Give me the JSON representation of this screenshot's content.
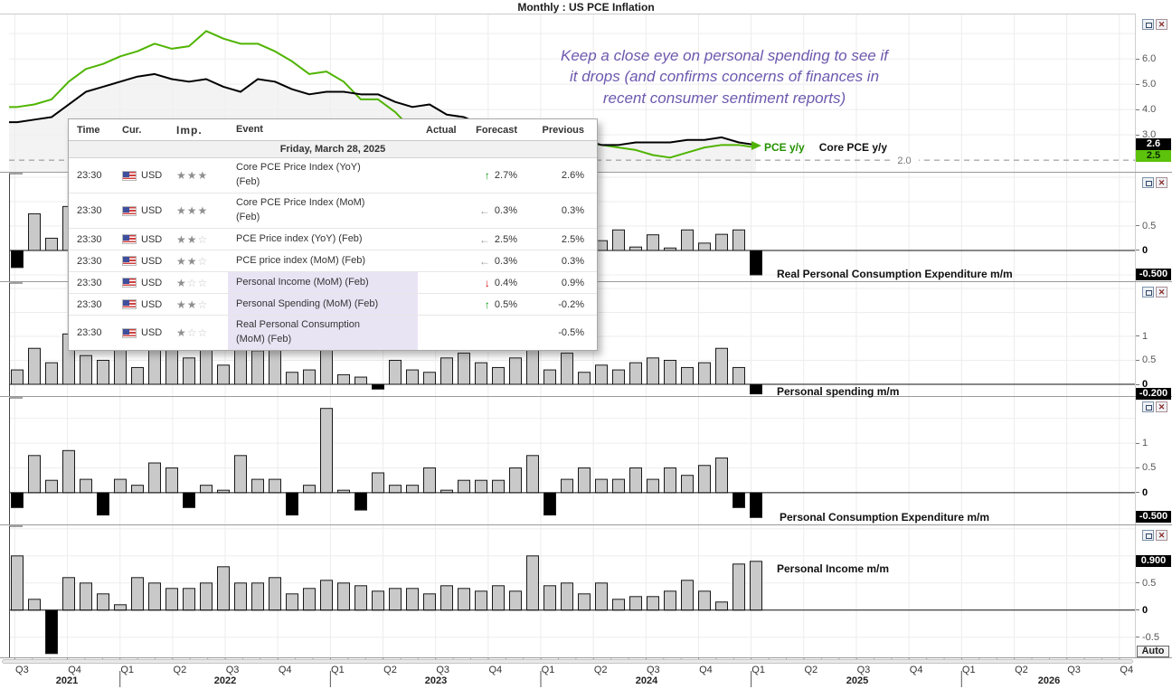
{
  "window": {
    "title": "Monthly : US PCE Inflation"
  },
  "annotation": {
    "lines": [
      "Keep a close eye on personal spending to see if",
      "it drops (and confirms concerns of finances in",
      "recent consumer sentiment reports)"
    ],
    "color": "#6d58ae"
  },
  "legend": {
    "items": [
      {
        "label": "PCE y/y",
        "color": "#249200"
      },
      {
        "label": "Core PCE y/y",
        "color": "#111111"
      }
    ]
  },
  "icons": {
    "minimize": "restore-box",
    "close": "✕",
    "up_arrow": "↑",
    "down_arrow": "↓",
    "flat_arrow": "←",
    "star_filled": "★",
    "star_empty": "☆"
  },
  "auto_button_label": "Auto",
  "calendar": {
    "header": [
      "Time",
      "Cur.",
      "Imp.",
      "Event",
      "Actual",
      "Forecast",
      "Previous"
    ],
    "date_label": "Friday, March 28, 2025",
    "rows": [
      {
        "time": "23:30",
        "currency": "USD",
        "importance": 3,
        "event": "Core PCE Price Index (YoY)\n(Feb)",
        "actual": "",
        "forecast": "2.7%",
        "forecast_dir": "up",
        "previous": "2.6%",
        "highlighted": false,
        "two_line": true
      },
      {
        "time": "23:30",
        "currency": "USD",
        "importance": 3,
        "event": "Core PCE Price Index (MoM)\n(Feb)",
        "actual": "",
        "forecast": "0.3%",
        "forecast_dir": "flat",
        "previous": "0.3%",
        "highlighted": false,
        "two_line": true
      },
      {
        "time": "23:30",
        "currency": "USD",
        "importance": 2,
        "event": "PCE Price index (YoY) (Feb)",
        "actual": "",
        "forecast": "2.5%",
        "forecast_dir": "flat",
        "previous": "2.5%",
        "highlighted": false,
        "two_line": false
      },
      {
        "time": "23:30",
        "currency": "USD",
        "importance": 2,
        "event": "PCE price index (MoM) (Feb)",
        "actual": "",
        "forecast": "0.3%",
        "forecast_dir": "flat",
        "previous": "0.3%",
        "highlighted": false,
        "two_line": false
      },
      {
        "time": "23:30",
        "currency": "USD",
        "importance": 1,
        "event": "Personal Income (MoM) (Feb)",
        "actual": "",
        "forecast": "0.4%",
        "forecast_dir": "down",
        "previous": "0.9%",
        "highlighted": true,
        "two_line": false
      },
      {
        "time": "23:30",
        "currency": "USD",
        "importance": 2,
        "event": "Personal Spending (MoM) (Feb)",
        "actual": "",
        "forecast": "0.5%",
        "forecast_dir": "up",
        "previous": "-0.2%",
        "highlighted": true,
        "two_line": false
      },
      {
        "time": "23:30",
        "currency": "USD",
        "importance": 1,
        "event": "Real Personal Consumption\n(MoM) (Feb)",
        "actual": "",
        "forecast": "",
        "forecast_dir": "none",
        "previous": "-0.5%",
        "highlighted": true,
        "two_line": true
      }
    ]
  },
  "time_axis": {
    "quarters": [
      "Q3",
      "Q4",
      "Q1",
      "Q2",
      "Q3",
      "Q4",
      "Q1",
      "Q2",
      "Q3",
      "Q4",
      "Q1",
      "Q2",
      "Q3",
      "Q4",
      "Q1",
      "Q2",
      "Q3",
      "Q4",
      "Q1",
      "Q2",
      "Q3",
      "Q4"
    ],
    "years": [
      "2021",
      "2022",
      "2023",
      "2024",
      "2025",
      "2026"
    ]
  },
  "bar_colors": {
    "positive": "#c9c9c9",
    "negative": "#000000",
    "outline": "#1a1a1a"
  },
  "chart_data": [
    {
      "type": "line",
      "name": "pce-inflation-yoy",
      "freq": "monthly",
      "x_start": "2021-07",
      "x_end": "2025-02",
      "series": [
        {
          "name": "PCE y/y",
          "color": "#4fb400",
          "values": [
            4.1,
            4.2,
            4.4,
            5.1,
            5.6,
            5.8,
            6.1,
            6.3,
            6.6,
            6.4,
            6.5,
            7.1,
            6.8,
            6.6,
            6.6,
            6.3,
            5.9,
            5.4,
            5.5,
            5.1,
            4.4,
            4.4,
            3.9,
            3.2,
            3.3,
            3.4,
            3.4,
            3.0,
            2.7,
            2.7,
            2.5,
            2.6,
            2.8,
            2.7,
            2.6,
            2.5,
            2.4,
            2.2,
            2.1,
            2.3,
            2.5,
            2.6,
            2.6,
            2.5
          ]
        },
        {
          "name": "Core PCE y/y",
          "color": "#000000",
          "values": [
            3.5,
            3.6,
            3.7,
            4.2,
            4.7,
            4.9,
            5.1,
            5.3,
            5.4,
            5.2,
            5.1,
            5.2,
            4.9,
            4.7,
            5.2,
            5.1,
            4.8,
            4.6,
            4.7,
            4.7,
            4.6,
            4.6,
            4.3,
            4.1,
            4.2,
            3.8,
            3.7,
            3.4,
            3.2,
            3.0,
            2.9,
            2.9,
            2.8,
            2.8,
            2.6,
            2.6,
            2.7,
            2.7,
            2.7,
            2.8,
            2.8,
            2.9,
            2.7,
            2.6
          ]
        }
      ],
      "ylim": [
        1.54,
        7.79
      ],
      "yticks": [
        {
          "v": 6,
          "label": "6.0"
        },
        {
          "v": 5,
          "label": "5.0"
        },
        {
          "v": 4,
          "label": "4.0"
        },
        {
          "v": 3,
          "label": "3.0"
        }
      ],
      "grid_v": [
        7,
        6,
        5,
        4,
        3
      ],
      "threshold": {
        "value": 2.0,
        "label": "2.0"
      },
      "badges": [
        {
          "label": "2.6",
          "value": 2.6,
          "bg": "#000000",
          "fg": "#ffffff"
        },
        {
          "label": "2.5",
          "value": 2.5,
          "bg": "#5cc20c",
          "fg": "#0a2a00"
        }
      ]
    },
    {
      "type": "bar",
      "name": "real-pce-mm",
      "label": "Real Personal Consumption Expenditure m/m",
      "freq": "monthly",
      "values": [
        -0.35,
        0.75,
        0.25,
        0.9,
        0.3,
        -0.2,
        0.2,
        0.1,
        0.4,
        0.2,
        -0.3,
        0.1,
        -0.1,
        0.4,
        0.1,
        0.3,
        -0.2,
        -0.1,
        0.9,
        -0.1,
        -0.2,
        0.3,
        0.1,
        0.2,
        0.4,
        0.0,
        0.2,
        0.2,
        0.3,
        0.4,
        0.5,
        -0.2,
        0.3,
        0.4,
        0.2,
        0.42,
        0.07,
        0.32,
        0.05,
        0.42,
        0.15,
        0.33,
        0.42,
        -0.5
      ],
      "ylim": [
        -0.63,
        1.61
      ],
      "yticks": [
        {
          "v": 0.5,
          "label": "0.5"
        },
        {
          "v": 0,
          "label": "0",
          "bold": true
        }
      ],
      "grid_v": [
        1.5,
        1,
        0.5,
        -0.5
      ],
      "badges": [
        {
          "label": "-0.500",
          "value": -0.5,
          "bg": "#000000",
          "fg": "#ffffff"
        }
      ]
    },
    {
      "type": "bar",
      "name": "personal-spending-mm",
      "label": "Personal spending m/m",
      "freq": "monthly",
      "values": [
        0.3,
        0.75,
        0.45,
        1.05,
        0.6,
        0.5,
        0.9,
        0.35,
        0.9,
        0.75,
        0.55,
        0.9,
        0.4,
        0.9,
        0.7,
        0.9,
        0.25,
        0.3,
        0.9,
        0.2,
        0.15,
        -0.1,
        0.5,
        0.3,
        0.25,
        0.55,
        0.65,
        0.45,
        0.35,
        0.55,
        0.9,
        0.3,
        0.65,
        0.25,
        0.4,
        0.3,
        0.45,
        0.55,
        0.5,
        0.35,
        0.45,
        0.75,
        0.35,
        -0.2
      ],
      "ylim": [
        -0.245,
        2.15
      ],
      "yticks": [
        {
          "v": 1,
          "label": "1"
        },
        {
          "v": 0.5,
          "label": "0.5"
        },
        {
          "v": 0,
          "label": "0",
          "bold": true
        }
      ],
      "grid_v": [
        2,
        1.5,
        1,
        0.5
      ],
      "badges": [
        {
          "label": "-0.200",
          "value": -0.2,
          "bg": "#000000",
          "fg": "#ffffff"
        }
      ]
    },
    {
      "type": "bar",
      "name": "pce-mm",
      "label": "Personal Consumption Expenditure m/m",
      "freq": "monthly",
      "values": [
        -0.3,
        0.75,
        0.25,
        0.85,
        0.27,
        -0.45,
        0.27,
        0.15,
        0.6,
        0.5,
        -0.3,
        0.15,
        0.05,
        0.75,
        0.27,
        0.27,
        -0.45,
        0.15,
        1.7,
        0.05,
        -0.35,
        0.4,
        0.15,
        0.15,
        0.5,
        0.05,
        0.25,
        0.25,
        0.25,
        0.5,
        0.75,
        -0.45,
        0.27,
        0.5,
        0.27,
        0.27,
        0.5,
        0.27,
        0.5,
        0.35,
        0.55,
        0.7,
        -0.3,
        -0.5
      ],
      "ylim": [
        -0.64,
        1.95
      ],
      "yticks": [
        {
          "v": 1,
          "label": "1"
        },
        {
          "v": 0.5,
          "label": "0.5"
        },
        {
          "v": 0,
          "label": "0",
          "bold": true
        }
      ],
      "grid_v": [
        1.5,
        1,
        0.5
      ],
      "badges": [
        {
          "label": "-0.500",
          "value": -0.5,
          "bg": "#000000",
          "fg": "#ffffff"
        }
      ]
    },
    {
      "type": "bar",
      "name": "personal-income-mm",
      "label": "Personal Income m/m",
      "freq": "monthly",
      "values": [
        1.0,
        0.2,
        -0.8,
        0.6,
        0.5,
        0.3,
        0.1,
        0.6,
        0.5,
        0.4,
        0.4,
        0.5,
        0.8,
        0.5,
        0.5,
        0.6,
        0.3,
        0.4,
        0.55,
        0.5,
        0.45,
        0.35,
        0.4,
        0.4,
        0.3,
        0.45,
        0.4,
        0.35,
        0.45,
        0.35,
        1.0,
        0.45,
        0.5,
        0.3,
        0.5,
        0.2,
        0.25,
        0.25,
        0.35,
        0.55,
        0.35,
        0.15,
        0.85,
        0.9
      ],
      "ylim": [
        -0.87,
        1.58
      ],
      "yticks": [
        {
          "v": 0.5,
          "label": "0.5"
        },
        {
          "v": 0,
          "label": "0",
          "bold": true
        },
        {
          "v": -0.5,
          "label": "-0.5"
        }
      ],
      "grid_v": [
        1.5,
        1,
        0.5,
        -0.5
      ],
      "badges": [
        {
          "label": "0.900",
          "value": 0.9,
          "bg": "#000000",
          "fg": "#ffffff"
        }
      ]
    }
  ]
}
